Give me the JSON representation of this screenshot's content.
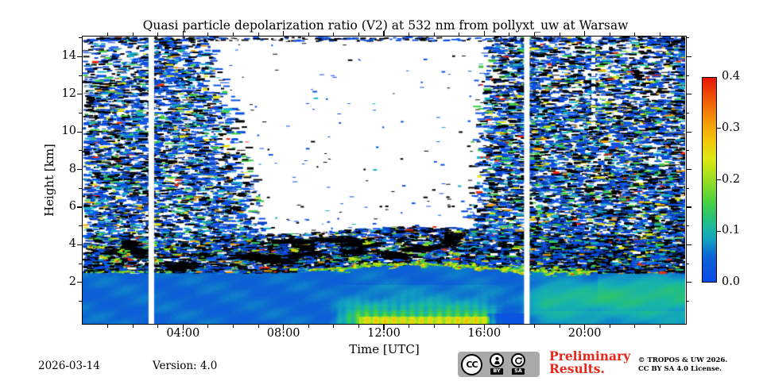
{
  "chart_data": {
    "type": "heatmap",
    "title": "Quasi particle depolarization ratio (V2) at 532 nm from pollyxt_uw at Warsaw",
    "xlabel": "Time [UTC]",
    "ylabel": "Height [km]",
    "xlim_hours": [
      0,
      24
    ],
    "ylim_km": [
      -0.2,
      15.07
    ],
    "x_major_ticks": [
      {
        "hour": 4,
        "label": "04:00"
      },
      {
        "hour": 8,
        "label": "08:00"
      },
      {
        "hour": 12,
        "label": "12:00"
      },
      {
        "hour": 16,
        "label": "16:00"
      },
      {
        "hour": 20,
        "label": "20:00"
      }
    ],
    "x_minor_every_hours": 1,
    "y_major_ticks": [
      {
        "km": 2,
        "label": "2"
      },
      {
        "km": 4,
        "label": "4"
      },
      {
        "km": 6,
        "label": "6"
      },
      {
        "km": 8,
        "label": "8"
      },
      {
        "km": 10,
        "label": "10"
      },
      {
        "km": 12,
        "label": "12"
      },
      {
        "km": 14,
        "label": "14"
      }
    ],
    "y_minor_every_km": 1,
    "colorbar": {
      "min": 0.0,
      "max": 0.4,
      "tick_values": [
        0.0,
        0.1,
        0.2,
        0.3,
        0.4
      ],
      "tick_labels": [
        "0.0",
        "0.1",
        "0.2",
        "0.3",
        "0.4"
      ],
      "dash_tick_values": [
        0.1,
        0.2,
        0.3
      ]
    },
    "colormap_stops": [
      [
        0.0,
        "#0a4ae8"
      ],
      [
        0.05,
        "#0c64d4"
      ],
      [
        0.08,
        "#129ec2"
      ],
      [
        0.1,
        "#17b4ac"
      ],
      [
        0.13,
        "#2cc46e"
      ],
      [
        0.16,
        "#4ed23c"
      ],
      [
        0.2,
        "#9ade22"
      ],
      [
        0.24,
        "#dce912"
      ],
      [
        0.28,
        "#f4c30b"
      ],
      [
        0.32,
        "#f39108"
      ],
      [
        0.36,
        "#ef5506"
      ],
      [
        0.4,
        "#e81604"
      ]
    ],
    "no_data_color": "#ffffff",
    "below_min_color": "#000000",
    "features": {
      "smooth_boundary_layer_top_km_base": 2.62,
      "boundary_layer_noon_bulge_km": 0.45,
      "speckle_band_above_layer_km": 2.0,
      "left_noise_wedge_end_hour_at_15km": 4.2,
      "right_noise_wedge_start_hour_at_15km": 16.9,
      "data_gap_hours": [
        2.72,
        17.68
      ],
      "dotted_gap_hour": 20.33,
      "dotted_gap_bottom_km": 10.4,
      "near_ground_high_depol_hours": [
        10.0,
        16.6
      ],
      "evening_elevated_layer_km": 1.15
    },
    "seed": 20260314
  },
  "footer": {
    "date": "2026-03-14",
    "version": "Version: 4.0",
    "preliminary_line1": "Preliminary",
    "preliminary_line2": "Results.",
    "copyright_line1": "© TROPOS & UW 2026.",
    "copyright_line2": "CC BY SA 4.0 License.",
    "badge": {
      "cc": "CC",
      "by": "BY",
      "sa": "SA"
    }
  }
}
